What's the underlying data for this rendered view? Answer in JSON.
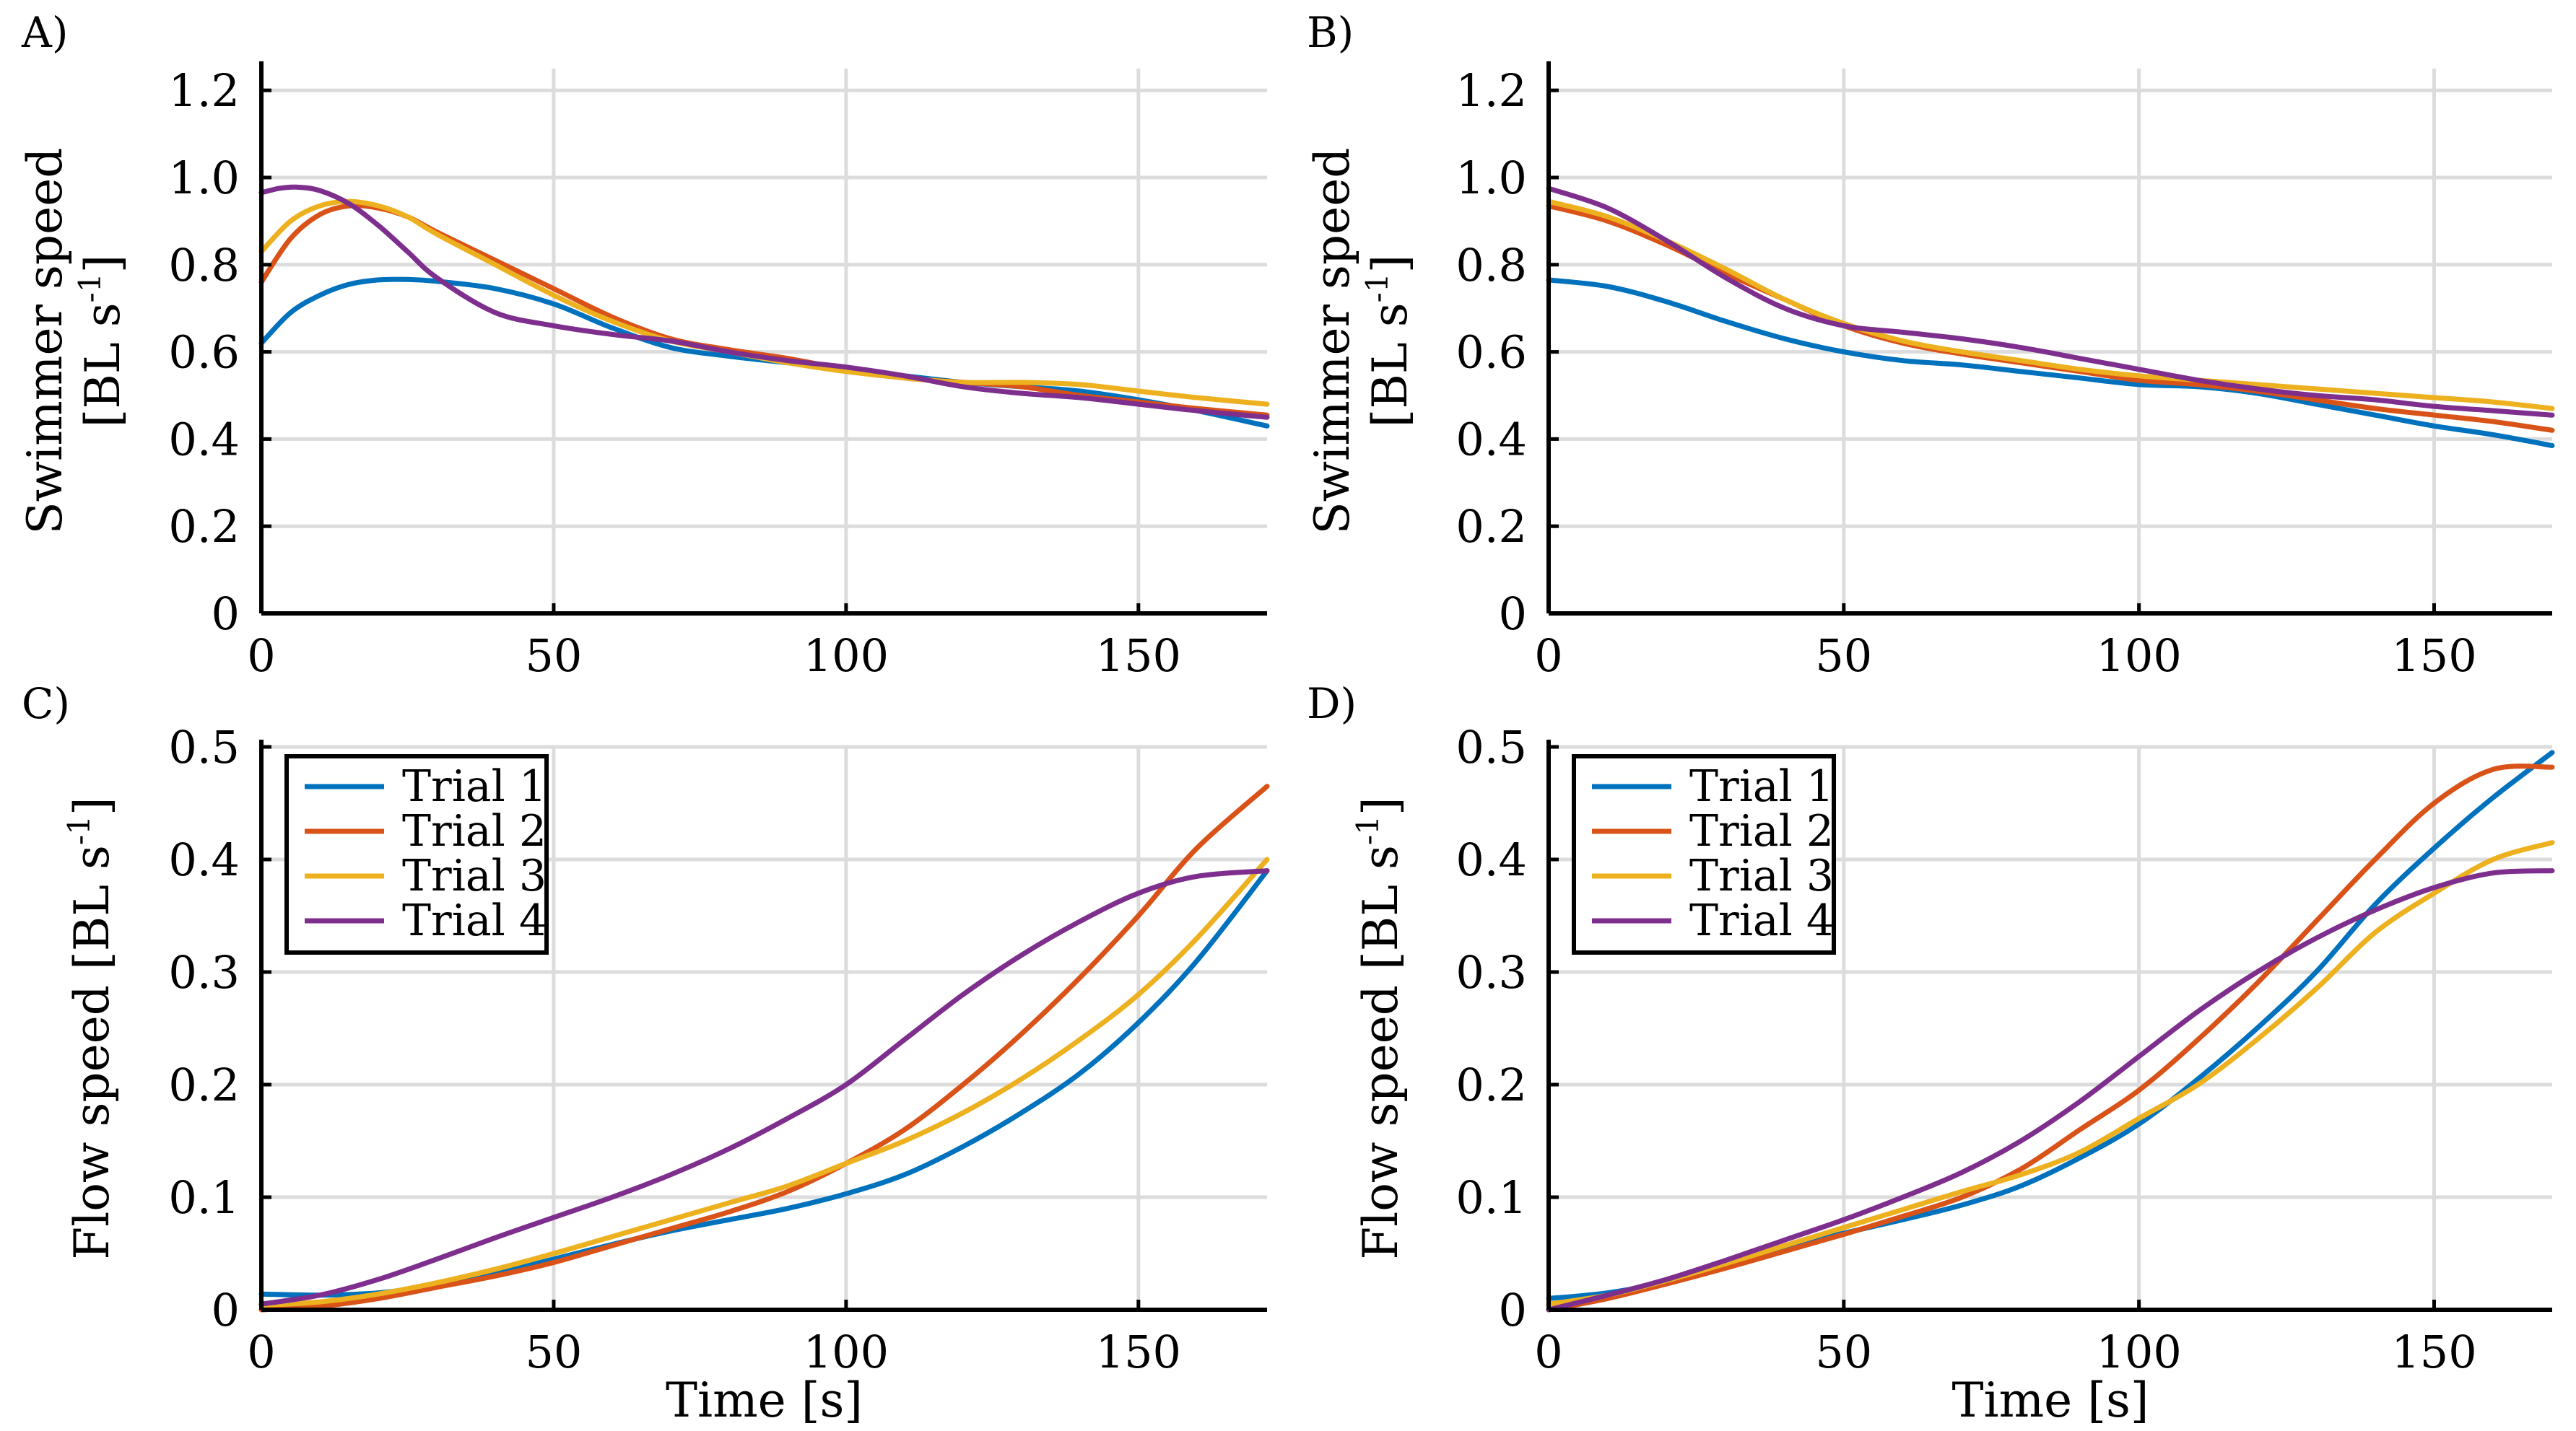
{
  "colors": {
    "trial1": "#0072BD",
    "trial2": "#D95319",
    "trial3": "#EDB120",
    "trial4": "#7E2F8E"
  },
  "chart_data": [
    {
      "id": "A",
      "panel_label": "A)",
      "type": "line",
      "ylabel_line1": "Swimmer speed",
      "ylabel_line2": "[BL s",
      "ylabel_sup": "-1",
      "ylabel_close": "]",
      "xlabel": "",
      "xlim": [
        0,
        172
      ],
      "ylim": [
        0,
        1.25
      ],
      "xticks": [
        0,
        50,
        100,
        150
      ],
      "xtick_labels": [
        "0",
        "50",
        "100",
        "150"
      ],
      "yticks": [
        0,
        0.2,
        0.4,
        0.6,
        0.8,
        1.0,
        1.2
      ],
      "ytick_labels": [
        "0",
        "0.2",
        "0.4",
        "0.6",
        "0.8",
        "1.0",
        "1.2"
      ],
      "grid": true,
      "legend": null,
      "series": [
        {
          "name": "Trial 1",
          "color_key": "trial1",
          "x": [
            0,
            5,
            10,
            15,
            20,
            25,
            30,
            40,
            50,
            60,
            70,
            80,
            90,
            100,
            110,
            120,
            130,
            140,
            150,
            160,
            172
          ],
          "y": [
            0.62,
            0.69,
            0.73,
            0.755,
            0.765,
            0.766,
            0.762,
            0.745,
            0.71,
            0.655,
            0.61,
            0.59,
            0.575,
            0.56,
            0.545,
            0.53,
            0.52,
            0.51,
            0.49,
            0.465,
            0.43
          ]
        },
        {
          "name": "Trial 2",
          "color_key": "trial2",
          "x": [
            0,
            5,
            10,
            15,
            20,
            25,
            30,
            40,
            50,
            60,
            70,
            80,
            90,
            100,
            110,
            120,
            130,
            140,
            150,
            160,
            172
          ],
          "y": [
            0.76,
            0.86,
            0.915,
            0.935,
            0.93,
            0.91,
            0.875,
            0.81,
            0.745,
            0.68,
            0.63,
            0.605,
            0.585,
            0.56,
            0.54,
            0.53,
            0.52,
            0.5,
            0.485,
            0.47,
            0.455
          ]
        },
        {
          "name": "Trial 3",
          "color_key": "trial3",
          "x": [
            0,
            5,
            10,
            15,
            20,
            25,
            30,
            40,
            50,
            60,
            70,
            80,
            90,
            100,
            110,
            120,
            130,
            140,
            150,
            160,
            172
          ],
          "y": [
            0.83,
            0.9,
            0.935,
            0.945,
            0.935,
            0.91,
            0.87,
            0.8,
            0.73,
            0.67,
            0.625,
            0.6,
            0.575,
            0.555,
            0.54,
            0.53,
            0.53,
            0.525,
            0.51,
            0.495,
            0.48
          ]
        },
        {
          "name": "Trial 4",
          "color_key": "trial4",
          "x": [
            0,
            3,
            6,
            10,
            15,
            20,
            25,
            30,
            40,
            50,
            60,
            70,
            80,
            90,
            100,
            110,
            120,
            130,
            140,
            150,
            160,
            172
          ],
          "y": [
            0.965,
            0.975,
            0.978,
            0.97,
            0.94,
            0.89,
            0.83,
            0.77,
            0.69,
            0.66,
            0.64,
            0.625,
            0.6,
            0.58,
            0.565,
            0.545,
            0.52,
            0.505,
            0.495,
            0.48,
            0.465,
            0.45
          ]
        }
      ]
    },
    {
      "id": "B",
      "panel_label": "B)",
      "type": "line",
      "ylabel_line1": "Swimmer speed",
      "ylabel_line2": "[BL s",
      "ylabel_sup": "-1",
      "ylabel_close": "]",
      "xlabel": "",
      "xlim": [
        0,
        170
      ],
      "ylim": [
        0,
        1.25
      ],
      "xticks": [
        0,
        50,
        100,
        150
      ],
      "xtick_labels": [
        "0",
        "50",
        "100",
        "150"
      ],
      "yticks": [
        0,
        0.2,
        0.4,
        0.6,
        0.8,
        1.0,
        1.2
      ],
      "ytick_labels": [
        "0",
        "0.2",
        "0.4",
        "0.6",
        "0.8",
        "1.0",
        "1.2"
      ],
      "grid": true,
      "legend": null,
      "series": [
        {
          "name": "Trial 1",
          "color_key": "trial1",
          "x": [
            0,
            10,
            20,
            30,
            40,
            50,
            60,
            70,
            80,
            90,
            100,
            110,
            120,
            130,
            140,
            150,
            160,
            170
          ],
          "y": [
            0.765,
            0.75,
            0.715,
            0.67,
            0.63,
            0.6,
            0.58,
            0.57,
            0.555,
            0.54,
            0.525,
            0.52,
            0.505,
            0.48,
            0.455,
            0.43,
            0.41,
            0.385
          ]
        },
        {
          "name": "Trial 2",
          "color_key": "trial2",
          "x": [
            0,
            10,
            20,
            30,
            40,
            50,
            60,
            70,
            80,
            90,
            100,
            110,
            120,
            130,
            140,
            150,
            160,
            170
          ],
          "y": [
            0.935,
            0.9,
            0.845,
            0.78,
            0.72,
            0.66,
            0.62,
            0.595,
            0.575,
            0.555,
            0.535,
            0.525,
            0.51,
            0.49,
            0.47,
            0.455,
            0.44,
            0.42
          ]
        },
        {
          "name": "Trial 3",
          "color_key": "trial3",
          "x": [
            0,
            10,
            20,
            30,
            40,
            50,
            60,
            70,
            80,
            90,
            100,
            110,
            120,
            130,
            140,
            150,
            160,
            170
          ],
          "y": [
            0.945,
            0.91,
            0.855,
            0.79,
            0.72,
            0.665,
            0.625,
            0.6,
            0.58,
            0.56,
            0.545,
            0.535,
            0.525,
            0.515,
            0.505,
            0.495,
            0.485,
            0.47
          ]
        },
        {
          "name": "Trial 4",
          "color_key": "trial4",
          "x": [
            0,
            10,
            20,
            30,
            40,
            50,
            60,
            70,
            80,
            90,
            100,
            110,
            120,
            130,
            140,
            150,
            160,
            170
          ],
          "y": [
            0.975,
            0.93,
            0.855,
            0.77,
            0.7,
            0.66,
            0.645,
            0.63,
            0.61,
            0.585,
            0.56,
            0.535,
            0.515,
            0.5,
            0.49,
            0.475,
            0.465,
            0.455
          ]
        }
      ]
    },
    {
      "id": "C",
      "panel_label": "C)",
      "type": "line",
      "ylabel_line1": "Flow speed [BL s",
      "ylabel_sup": "-1",
      "ylabel_close": "]",
      "xlabel": "Time [s]",
      "xlim": [
        0,
        172
      ],
      "ylim": [
        0,
        0.5
      ],
      "xticks": [
        0,
        50,
        100,
        150
      ],
      "xtick_labels": [
        "0",
        "50",
        "100",
        "150"
      ],
      "yticks": [
        0,
        0.1,
        0.2,
        0.3,
        0.4,
        0.5
      ],
      "ytick_labels": [
        "0",
        "0.1",
        "0.2",
        "0.3",
        "0.4",
        "0.5"
      ],
      "grid": true,
      "legend": "top-left",
      "series": [
        {
          "name": "Trial 1",
          "color_key": "trial1",
          "x": [
            0,
            10,
            20,
            30,
            40,
            50,
            60,
            70,
            80,
            90,
            100,
            110,
            120,
            130,
            140,
            150,
            160,
            172
          ],
          "y": [
            0.014,
            0.013,
            0.015,
            0.022,
            0.032,
            0.045,
            0.058,
            0.07,
            0.08,
            0.09,
            0.103,
            0.12,
            0.145,
            0.175,
            0.21,
            0.255,
            0.31,
            0.39
          ]
        },
        {
          "name": "Trial 2",
          "color_key": "trial2",
          "x": [
            0,
            10,
            20,
            30,
            40,
            50,
            60,
            70,
            80,
            90,
            100,
            110,
            120,
            130,
            140,
            150,
            160,
            172
          ],
          "y": [
            0.0,
            0.003,
            0.01,
            0.02,
            0.03,
            0.042,
            0.057,
            0.072,
            0.087,
            0.105,
            0.13,
            0.16,
            0.2,
            0.245,
            0.295,
            0.35,
            0.41,
            0.465
          ]
        },
        {
          "name": "Trial 3",
          "color_key": "trial3",
          "x": [
            0,
            10,
            20,
            30,
            40,
            50,
            60,
            70,
            80,
            90,
            100,
            110,
            120,
            130,
            140,
            150,
            160,
            172
          ],
          "y": [
            0.004,
            0.007,
            0.014,
            0.024,
            0.036,
            0.05,
            0.065,
            0.08,
            0.095,
            0.11,
            0.13,
            0.15,
            0.175,
            0.205,
            0.24,
            0.28,
            0.33,
            0.4
          ]
        },
        {
          "name": "Trial 4",
          "color_key": "trial4",
          "x": [
            0,
            10,
            20,
            30,
            40,
            50,
            60,
            70,
            80,
            90,
            100,
            110,
            120,
            130,
            140,
            150,
            160,
            172
          ],
          "y": [
            0.005,
            0.013,
            0.027,
            0.045,
            0.064,
            0.082,
            0.1,
            0.12,
            0.143,
            0.17,
            0.2,
            0.24,
            0.28,
            0.315,
            0.345,
            0.37,
            0.385,
            0.39
          ]
        }
      ]
    },
    {
      "id": "D",
      "panel_label": "D)",
      "type": "line",
      "ylabel_line1": "Flow speed [BL s",
      "ylabel_sup": "-1",
      "ylabel_close": "]",
      "xlabel": "Time [s]",
      "xlim": [
        0,
        170
      ],
      "ylim": [
        0,
        0.5
      ],
      "xticks": [
        0,
        50,
        100,
        150
      ],
      "xtick_labels": [
        "0",
        "50",
        "100",
        "150"
      ],
      "yticks": [
        0,
        0.1,
        0.2,
        0.3,
        0.4,
        0.5
      ],
      "ytick_labels": [
        "0",
        "0.1",
        "0.2",
        "0.3",
        "0.4",
        "0.5"
      ],
      "grid": true,
      "legend": "top-left",
      "series": [
        {
          "name": "Trial 1",
          "color_key": "trial1",
          "x": [
            0,
            10,
            20,
            30,
            40,
            50,
            60,
            70,
            80,
            90,
            100,
            110,
            120,
            130,
            140,
            150,
            160,
            170
          ],
          "y": [
            0.01,
            0.015,
            0.025,
            0.04,
            0.055,
            0.068,
            0.08,
            0.093,
            0.11,
            0.135,
            0.165,
            0.205,
            0.25,
            0.3,
            0.36,
            0.41,
            0.455,
            0.495
          ]
        },
        {
          "name": "Trial 2",
          "color_key": "trial2",
          "x": [
            0,
            10,
            20,
            30,
            40,
            50,
            60,
            70,
            80,
            90,
            100,
            110,
            120,
            130,
            140,
            150,
            160,
            170
          ],
          "y": [
            0.0,
            0.01,
            0.023,
            0.037,
            0.052,
            0.067,
            0.083,
            0.1,
            0.125,
            0.16,
            0.195,
            0.24,
            0.29,
            0.345,
            0.4,
            0.45,
            0.48,
            0.482
          ]
        },
        {
          "name": "Trial 3",
          "color_key": "trial3",
          "x": [
            0,
            10,
            20,
            30,
            40,
            50,
            60,
            70,
            80,
            90,
            100,
            110,
            120,
            130,
            140,
            150,
            160,
            170
          ],
          "y": [
            0.005,
            0.013,
            0.026,
            0.041,
            0.057,
            0.073,
            0.089,
            0.105,
            0.12,
            0.14,
            0.17,
            0.2,
            0.24,
            0.285,
            0.335,
            0.37,
            0.4,
            0.415
          ]
        },
        {
          "name": "Trial 4",
          "color_key": "trial4",
          "x": [
            0,
            10,
            20,
            30,
            40,
            50,
            60,
            70,
            80,
            90,
            100,
            110,
            120,
            130,
            140,
            150,
            160,
            170
          ],
          "y": [
            0.0,
            0.013,
            0.027,
            0.044,
            0.062,
            0.08,
            0.1,
            0.122,
            0.15,
            0.185,
            0.225,
            0.265,
            0.3,
            0.33,
            0.355,
            0.375,
            0.388,
            0.39
          ]
        }
      ]
    }
  ]
}
